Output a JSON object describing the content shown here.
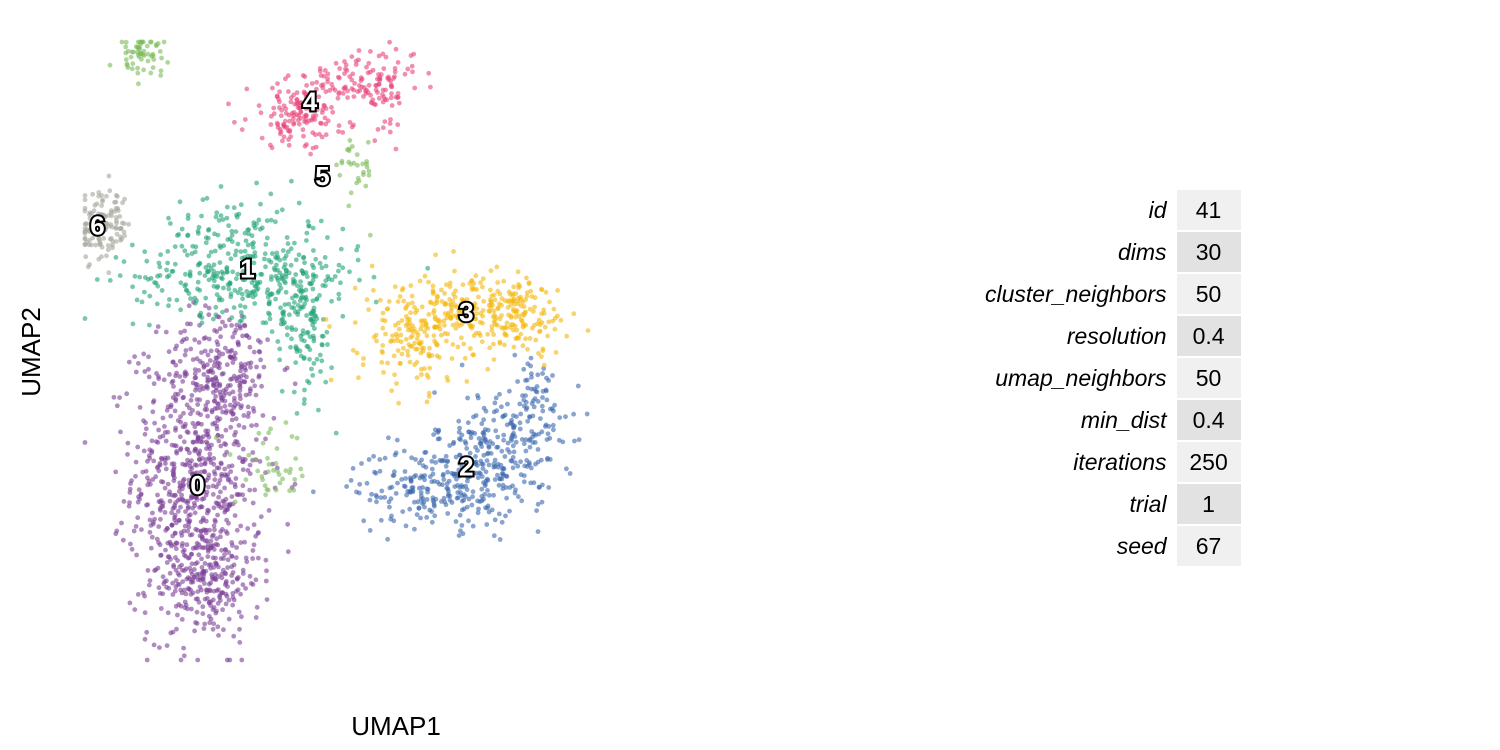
{
  "chart_data": {
    "type": "scatter",
    "title": "",
    "xlabel": "UMAP1",
    "ylabel": "UMAP2",
    "xlim": [
      0,
      100
    ],
    "ylim": [
      0,
      100
    ],
    "grid": false,
    "point_alpha": 0.6,
    "clusters": [
      {
        "label": "0",
        "color": "#7b3f98",
        "label_pos": {
          "x": 18,
          "y": 28
        },
        "blobs": [
          {
            "x": 18,
            "y": 30,
            "sx": 5.2,
            "sy": 11,
            "n": 700
          },
          {
            "x": 19,
            "y": 13,
            "sx": 4.5,
            "sy": 5,
            "n": 220
          },
          {
            "x": 22,
            "y": 48,
            "sx": 4.5,
            "sy": 4.5,
            "n": 150
          }
        ]
      },
      {
        "label": "1",
        "color": "#1fa377",
        "label_pos": {
          "x": 26,
          "y": 63
        },
        "blobs": [
          {
            "x": 26,
            "y": 62,
            "sx": 9,
            "sy": 3.2,
            "n": 300
          },
          {
            "x": 35,
            "y": 54,
            "sx": 2.5,
            "sy": 6,
            "n": 130
          },
          {
            "x": 24,
            "y": 70,
            "sx": 6,
            "sy": 3,
            "n": 80
          }
        ]
      },
      {
        "label": "2",
        "color": "#3a68ad",
        "label_pos": {
          "x": 61,
          "y": 31
        },
        "blobs": [
          {
            "x": 56,
            "y": 28,
            "sx": 6.5,
            "sy": 3.2,
            "n": 220
          },
          {
            "x": 66,
            "y": 34,
            "sx": 5,
            "sy": 5,
            "n": 230
          },
          {
            "x": 72,
            "y": 42,
            "sx": 2.5,
            "sy": 4,
            "n": 60
          }
        ]
      },
      {
        "label": "3",
        "color": "#f3b80e",
        "label_pos": {
          "x": 61,
          "y": 56
        },
        "blobs": [
          {
            "x": 68,
            "y": 56,
            "sx": 4.8,
            "sy": 3.2,
            "n": 200
          },
          {
            "x": 53,
            "y": 53,
            "sx": 4.5,
            "sy": 4.5,
            "n": 200
          },
          {
            "x": 60,
            "y": 57,
            "sx": 3,
            "sy": 2,
            "n": 60
          }
        ]
      },
      {
        "label": "4",
        "color": "#e8457a",
        "label_pos": {
          "x": 36,
          "y": 90
        },
        "blobs": [
          {
            "x": 34,
            "y": 88,
            "sx": 4,
            "sy": 2.5,
            "n": 140
          },
          {
            "x": 43,
            "y": 94,
            "sx": 5,
            "sy": 1.8,
            "n": 80
          },
          {
            "x": 48,
            "y": 92,
            "sx": 2,
            "sy": 3,
            "n": 60
          }
        ]
      },
      {
        "label": "5",
        "color": "#7cbb5a",
        "label_pos": {
          "x": 38,
          "y": 78
        },
        "blobs": [
          {
            "x": 9,
            "y": 98,
            "sx": 2,
            "sy": 1.7,
            "n": 60
          },
          {
            "x": 43,
            "y": 79,
            "sx": 1.6,
            "sy": 3,
            "n": 30
          },
          {
            "x": 30,
            "y": 31,
            "sx": 3,
            "sy": 3,
            "n": 40
          }
        ]
      },
      {
        "label": "6",
        "color": "#a5a79c",
        "label_pos": {
          "x": 2,
          "y": 70
        },
        "blobs": [
          {
            "x": 3,
            "y": 70,
            "sx": 2.2,
            "sy": 2.8,
            "n": 120
          }
        ]
      }
    ]
  },
  "params_table": [
    {
      "name": "id",
      "value": "41"
    },
    {
      "name": "dims",
      "value": "30"
    },
    {
      "name": "cluster_neighbors",
      "value": "50"
    },
    {
      "name": "resolution",
      "value": "0.4"
    },
    {
      "name": "umap_neighbors",
      "value": "50"
    },
    {
      "name": "min_dist",
      "value": "0.4"
    },
    {
      "name": "iterations",
      "value": "250"
    },
    {
      "name": "trial",
      "value": "1"
    },
    {
      "name": "seed",
      "value": "67"
    }
  ]
}
